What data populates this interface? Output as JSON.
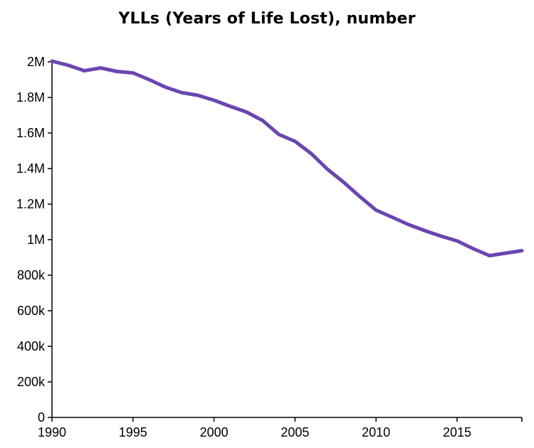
{
  "chart_data": {
    "type": "line",
    "title": "YLLs (Years of Life Lost), number",
    "xlabel": "",
    "ylabel": "",
    "xlim": [
      1990,
      2019
    ],
    "ylim": [
      0,
      2000000
    ],
    "x_ticks": [
      1990,
      1995,
      2000,
      2005,
      2010,
      2015
    ],
    "x_tick_labels": [
      "1990",
      "1995",
      "2000",
      "2005",
      "2010",
      "2015"
    ],
    "y_ticks": [
      0,
      200000,
      400000,
      600000,
      800000,
      1000000,
      1200000,
      1400000,
      1600000,
      1800000,
      2000000
    ],
    "y_tick_labels": [
      "0",
      "200k",
      "400k",
      "600k",
      "800k",
      "1M",
      "1.2M",
      "1.4M",
      "1.6M",
      "1.8M",
      "2M"
    ],
    "grid": false,
    "legend": "none",
    "series": [
      {
        "color": "#6a46b0",
        "x": [
          1990,
          1991,
          1992,
          1993,
          1994,
          1995,
          1996,
          1997,
          1998,
          1999,
          2000,
          2001,
          2002,
          2003,
          2004,
          2005,
          2006,
          2007,
          2008,
          2009,
          2010,
          2011,
          2012,
          2013,
          2014,
          2015,
          2016,
          2017,
          2018,
          2019
        ],
        "values": [
          2004000,
          1981000,
          1950000,
          1966000,
          1946000,
          1938000,
          1900000,
          1858000,
          1827000,
          1812000,
          1784000,
          1750000,
          1718000,
          1670000,
          1592000,
          1553000,
          1484000,
          1396000,
          1323000,
          1242000,
          1166000,
          1126000,
          1085000,
          1051000,
          1020000,
          993000,
          949000,
          910000,
          924000,
          938000
        ]
      }
    ]
  }
}
